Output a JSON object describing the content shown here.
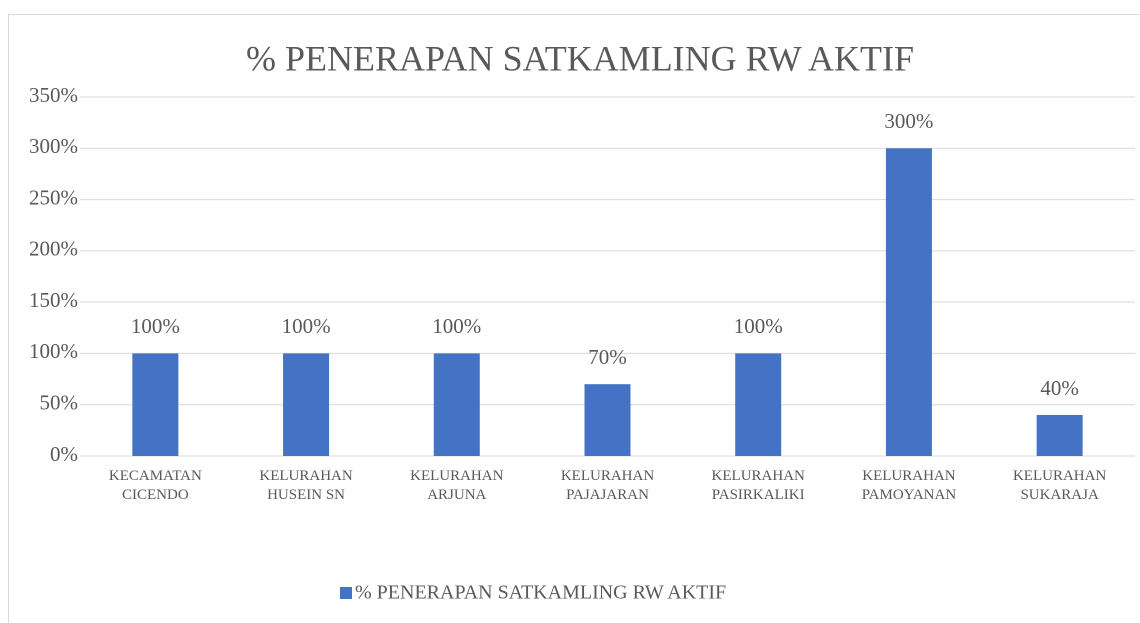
{
  "chart_data": {
    "type": "bar",
    "title": "% PENERAPAN SATKAMLING RW AKTIF",
    "categories": [
      "KECAMATAN\nCICENDO",
      "KELURAHAN\nHUSEIN SN",
      "KELURAHAN\nARJUNA",
      "KELURAHAN\nPAJAJARAN",
      "KELURAHAN\nPASIRKALIKI",
      "KELURAHAN\nPAMOYANAN",
      "KELURAHAN\nSUKARAJA"
    ],
    "series": [
      {
        "name": "% PENERAPAN SATKAMLING RW AKTIF",
        "color": "#4472c4",
        "values": [
          100,
          100,
          100,
          70,
          100,
          300,
          40
        ],
        "value_labels": [
          "100%",
          "100%",
          "100%",
          "70%",
          "100%",
          "300%",
          "40%"
        ]
      }
    ],
    "ylim": [
      0,
      350
    ],
    "yticks": [
      {
        "value": 0,
        "label": "0%"
      },
      {
        "value": 50,
        "label": "50%"
      },
      {
        "value": 100,
        "label": "100%"
      },
      {
        "value": 150,
        "label": "150%"
      },
      {
        "value": 200,
        "label": "200%"
      },
      {
        "value": 250,
        "label": "250%"
      },
      {
        "value": 300,
        "label": "300%"
      },
      {
        "value": 350,
        "label": "350%"
      }
    ],
    "grid": true,
    "legend": "bottom"
  }
}
